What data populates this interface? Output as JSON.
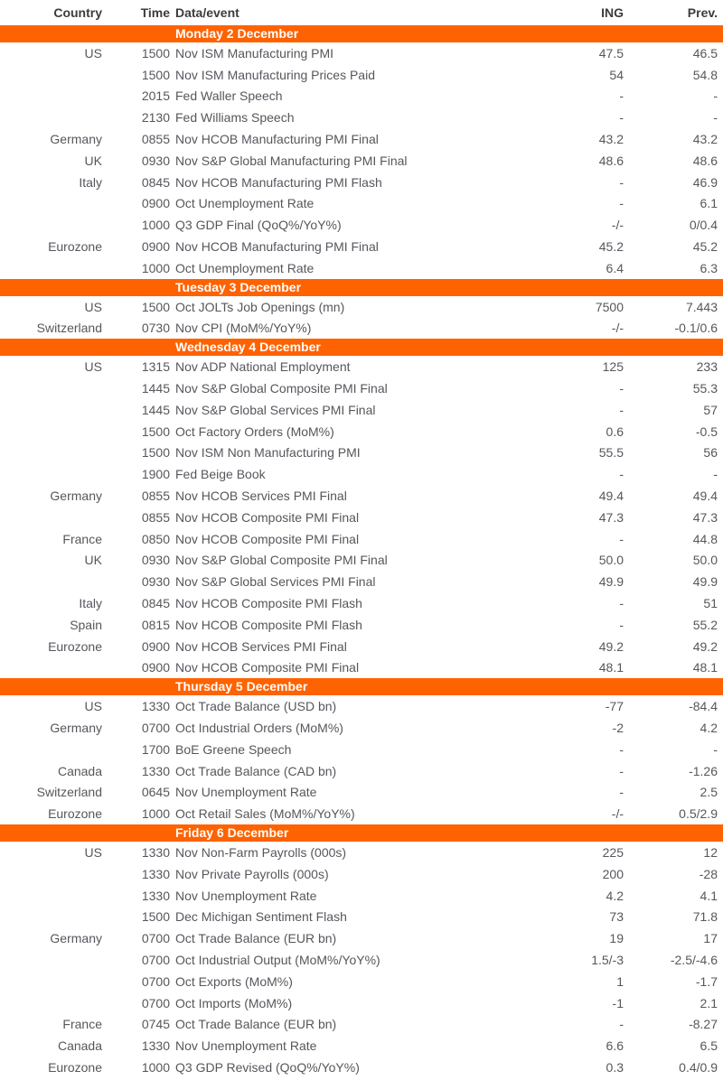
{
  "colors": {
    "accent": "#FF6200",
    "header_text": "#3C3C3C",
    "body_text": "#55575C",
    "band_text": "#FFFFFF"
  },
  "header": {
    "country": "Country",
    "time": "Time",
    "event": "Data/event",
    "ing": "ING",
    "prev": "Prev."
  },
  "sections": [
    {
      "title": "Monday 2 December",
      "rows": [
        {
          "country": "US",
          "time": "1500",
          "event": "Nov ISM Manufacturing PMI",
          "ing": "47.5",
          "prev": "46.5"
        },
        {
          "country": "",
          "time": "1500",
          "event": "Nov ISM Manufacturing Prices Paid",
          "ing": "54",
          "prev": "54.8"
        },
        {
          "country": "",
          "time": "2015",
          "event": "Fed Waller Speech",
          "ing": "-",
          "prev": "-"
        },
        {
          "country": "",
          "time": "2130",
          "event": "Fed Williams Speech",
          "ing": "-",
          "prev": "-"
        },
        {
          "country": "Germany",
          "time": "0855",
          "event": "Nov HCOB Manufacturing PMI Final",
          "ing": "43.2",
          "prev": "43.2"
        },
        {
          "country": "UK",
          "time": "0930",
          "event": "Nov S&P Global Manufacturing PMI Final",
          "ing": "48.6",
          "prev": "48.6"
        },
        {
          "country": "Italy",
          "time": "0845",
          "event": "Nov HCOB Manufacturing PMI Flash",
          "ing": "-",
          "prev": "46.9"
        },
        {
          "country": "",
          "time": "0900",
          "event": "Oct Unemployment Rate",
          "ing": "-",
          "prev": "6.1"
        },
        {
          "country": "",
          "time": "1000",
          "event": "Q3 GDP Final (QoQ%/YoY%)",
          "ing": "-/-",
          "prev": "0/0.4"
        },
        {
          "country": "Eurozone",
          "time": "0900",
          "event": "Nov HCOB Manufacturing PMI Final",
          "ing": "45.2",
          "prev": "45.2"
        },
        {
          "country": "",
          "time": "1000",
          "event": "Oct Unemployment Rate",
          "ing": "6.4",
          "prev": "6.3"
        }
      ]
    },
    {
      "title": "Tuesday 3 December",
      "rows": [
        {
          "country": "US",
          "time": "1500",
          "event": "Oct JOLTs Job Openings (mn)",
          "ing": "7500",
          "prev": "7.443"
        },
        {
          "country": "Switzerland",
          "time": "0730",
          "event": "Nov CPI (MoM%/YoY%)",
          "ing": "-/-",
          "prev": "-0.1/0.6"
        }
      ]
    },
    {
      "title": "Wednesday 4 December",
      "rows": [
        {
          "country": "US",
          "time": "1315",
          "event": "Nov ADP National Employment",
          "ing": "125",
          "prev": "233"
        },
        {
          "country": "",
          "time": "1445",
          "event": "Nov S&P Global Composite PMI Final",
          "ing": "-",
          "prev": "55.3"
        },
        {
          "country": "",
          "time": "1445",
          "event": "Nov S&P Global Services PMI Final",
          "ing": "-",
          "prev": "57"
        },
        {
          "country": "",
          "time": "1500",
          "event": "Oct Factory Orders (MoM%)",
          "ing": "0.6",
          "prev": "-0.5"
        },
        {
          "country": "",
          "time": "1500",
          "event": "Nov ISM Non Manufacturing PMI",
          "ing": "55.5",
          "prev": "56"
        },
        {
          "country": "",
          "time": "1900",
          "event": "Fed Beige Book",
          "ing": "-",
          "prev": "-"
        },
        {
          "country": "Germany",
          "time": "0855",
          "event": "Nov HCOB Services PMI Final",
          "ing": "49.4",
          "prev": "49.4"
        },
        {
          "country": "",
          "time": "0855",
          "event": "Nov HCOB Composite PMI Final",
          "ing": "47.3",
          "prev": "47.3"
        },
        {
          "country": "France",
          "time": "0850",
          "event": "Nov HCOB Composite PMI Final",
          "ing": "-",
          "prev": "44.8"
        },
        {
          "country": "UK",
          "time": "0930",
          "event": "Nov S&P Global Composite PMI Final",
          "ing": "50.0",
          "prev": "50.0"
        },
        {
          "country": "",
          "time": "0930",
          "event": "Nov S&P Global Services PMI Final",
          "ing": "49.9",
          "prev": "49.9"
        },
        {
          "country": "Italy",
          "time": "0845",
          "event": "Nov HCOB Composite PMI Flash",
          "ing": "-",
          "prev": "51"
        },
        {
          "country": "Spain",
          "time": "0815",
          "event": "Nov HCOB Composite PMI Flash",
          "ing": "-",
          "prev": "55.2"
        },
        {
          "country": "Eurozone",
          "time": "0900",
          "event": "Nov HCOB Services PMI Final",
          "ing": "49.2",
          "prev": "49.2"
        },
        {
          "country": "",
          "time": "0900",
          "event": "Nov HCOB Composite PMI Final",
          "ing": "48.1",
          "prev": "48.1"
        }
      ]
    },
    {
      "title": "Thursday 5 December",
      "rows": [
        {
          "country": "US",
          "time": "1330",
          "event": "Oct Trade Balance (USD bn)",
          "ing": "-77",
          "prev": "-84.4"
        },
        {
          "country": "Germany",
          "time": "0700",
          "event": "Oct Industrial Orders (MoM%)",
          "ing": "-2",
          "prev": "4.2"
        },
        {
          "country": "",
          "time": "1700",
          "event": "BoE Greene Speech",
          "ing": "-",
          "prev": "-"
        },
        {
          "country": "Canada",
          "time": "1330",
          "event": "Oct Trade Balance (CAD bn)",
          "ing": "-",
          "prev": "-1.26"
        },
        {
          "country": "Switzerland",
          "time": "0645",
          "event": "Nov Unemployment Rate",
          "ing": "-",
          "prev": "2.5"
        },
        {
          "country": "Eurozone",
          "time": "1000",
          "event": "Oct Retail Sales (MoM%/YoY%)",
          "ing": "-/-",
          "prev": "0.5/2.9"
        }
      ]
    },
    {
      "title": "Friday 6 December",
      "rows": [
        {
          "country": "US",
          "time": "1330",
          "event": "Nov Non-Farm Payrolls (000s)",
          "ing": "225",
          "prev": "12"
        },
        {
          "country": "",
          "time": "1330",
          "event": "Nov Private Payrolls (000s)",
          "ing": "200",
          "prev": "-28"
        },
        {
          "country": "",
          "time": "1330",
          "event": "Nov Unemployment Rate",
          "ing": "4.2",
          "prev": "4.1"
        },
        {
          "country": "",
          "time": "1500",
          "event": "Dec Michigan Sentiment Flash",
          "ing": "73",
          "prev": "71.8"
        },
        {
          "country": "Germany",
          "time": "0700",
          "event": "Oct Trade Balance (EUR bn)",
          "ing": "19",
          "prev": "17"
        },
        {
          "country": "",
          "time": "0700",
          "event": "Oct Industrial Output (MoM%/YoY%)",
          "ing": "1.5/-3",
          "prev": "-2.5/-4.6"
        },
        {
          "country": "",
          "time": "0700",
          "event": "Oct Exports (MoM%)",
          "ing": "1",
          "prev": "-1.7"
        },
        {
          "country": "",
          "time": "0700",
          "event": "Oct Imports (MoM%)",
          "ing": "-1",
          "prev": "2.1"
        },
        {
          "country": "France",
          "time": "0745",
          "event": "Oct Trade Balance (EUR bn)",
          "ing": "-",
          "prev": "-8.27"
        },
        {
          "country": "Canada",
          "time": "1330",
          "event": "Nov Unemployment Rate",
          "ing": "6.6",
          "prev": "6.5"
        },
        {
          "country": "Eurozone",
          "time": "1000",
          "event": "Q3 GDP Revised (QoQ%/YoY%)",
          "ing": "0.3",
          "prev": "0.4/0.9"
        }
      ]
    }
  ]
}
